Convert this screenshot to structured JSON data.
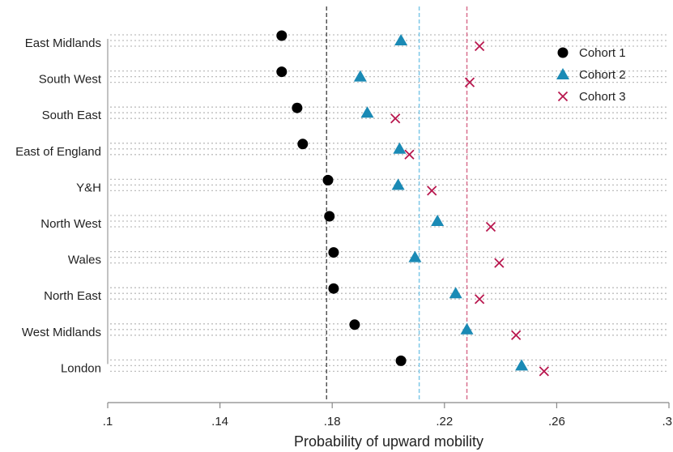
{
  "chart_data": {
    "type": "scatter",
    "xlabel": "Probability of upward mobility",
    "xlim": [
      0.1,
      0.3
    ],
    "xticks": [
      0.1,
      0.14,
      0.18,
      0.22,
      0.26,
      0.3
    ],
    "xtick_labels": [
      ".1",
      ".14",
      ".18",
      ".22",
      ".26",
      ".3"
    ],
    "categories": [
      "East Midlands",
      "South West",
      "South East",
      "East of England",
      "Y&H",
      "North West",
      "Wales",
      "North East",
      "West Midlands",
      "London"
    ],
    "series": [
      {
        "name": "Cohort 1",
        "marker": "circle",
        "color": "#000000",
        "values": [
          0.162,
          0.162,
          0.1675,
          0.1695,
          0.1785,
          0.179,
          0.1805,
          0.1805,
          0.188,
          0.2045
        ]
      },
      {
        "name": "Cohort 2",
        "marker": "triangle",
        "color": "#1a8ab5",
        "values": [
          0.2045,
          0.19,
          0.1925,
          0.204,
          0.2035,
          0.2175,
          0.2095,
          0.224,
          0.228,
          0.2475
        ]
      },
      {
        "name": "Cohort 3",
        "marker": "x",
        "color": "#b8174e",
        "values": [
          0.2325,
          0.229,
          0.2025,
          0.2075,
          0.2155,
          0.2365,
          0.2395,
          0.2325,
          0.2455,
          0.2555
        ]
      }
    ],
    "reference_lines": [
      {
        "series": "Cohort 1",
        "x": 0.178,
        "color": "#555555",
        "style": "dashed"
      },
      {
        "series": "Cohort 2",
        "x": 0.211,
        "color": "#7ec8e8",
        "style": "dashed"
      },
      {
        "series": "Cohort 3",
        "x": 0.228,
        "color": "#d9708f",
        "style": "dashed"
      }
    ],
    "grid": "dotted-horizontal",
    "legend_position": "top-right"
  }
}
